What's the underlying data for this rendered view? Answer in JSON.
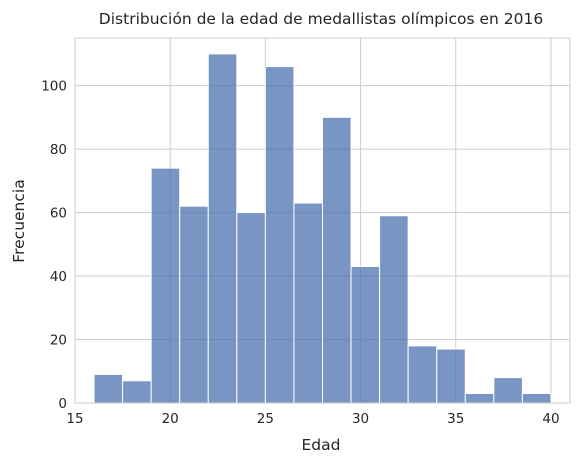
{
  "chart_data": {
    "type": "bar",
    "title": "Distribución de la edad de medallistas olímpicos en 2016",
    "xlabel": "Edad",
    "ylabel": "Frecuencia",
    "xlim": [
      15,
      41
    ],
    "ylim": [
      0,
      115
    ],
    "xticks": [
      15,
      20,
      25,
      30,
      35,
      40
    ],
    "yticks": [
      0,
      20,
      40,
      60,
      80,
      100
    ],
    "grid": true,
    "bar_color": "#4c72b0",
    "bins": [
      {
        "x0": 16.0,
        "x1": 17.5,
        "count": 9
      },
      {
        "x0": 17.5,
        "x1": 19.0,
        "count": 7
      },
      {
        "x0": 19.0,
        "x1": 20.5,
        "count": 74
      },
      {
        "x0": 20.5,
        "x1": 22.0,
        "count": 62
      },
      {
        "x0": 22.0,
        "x1": 23.5,
        "count": 110
      },
      {
        "x0": 23.5,
        "x1": 25.0,
        "count": 60
      },
      {
        "x0": 25.0,
        "x1": 26.5,
        "count": 106
      },
      {
        "x0": 26.5,
        "x1": 28.0,
        "count": 63
      },
      {
        "x0": 28.0,
        "x1": 29.5,
        "count": 90
      },
      {
        "x0": 29.5,
        "x1": 31.0,
        "count": 43
      },
      {
        "x0": 31.0,
        "x1": 32.5,
        "count": 59
      },
      {
        "x0": 32.5,
        "x1": 34.0,
        "count": 18
      },
      {
        "x0": 34.0,
        "x1": 35.5,
        "count": 17
      },
      {
        "x0": 35.5,
        "x1": 37.0,
        "count": 3
      },
      {
        "x0": 37.0,
        "x1": 38.5,
        "count": 8
      },
      {
        "x0": 38.5,
        "x1": 40.0,
        "count": 3
      }
    ]
  }
}
